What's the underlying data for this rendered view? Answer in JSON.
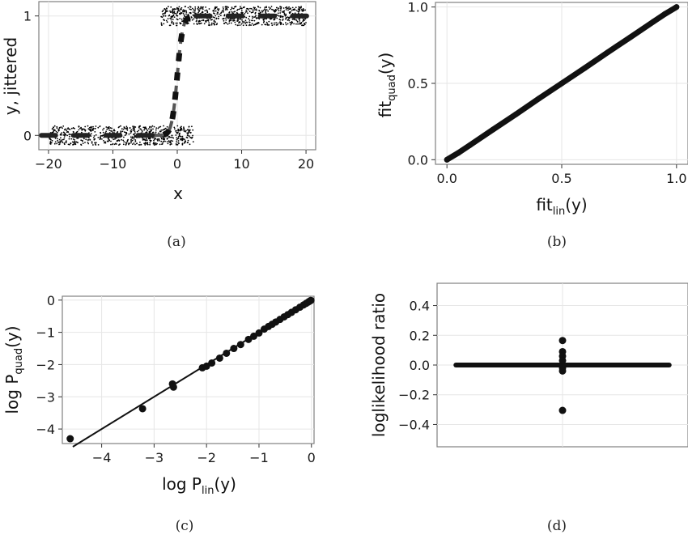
{
  "figure": {
    "captions": [
      "(a)",
      "(b)",
      "(c)",
      "(d)"
    ]
  },
  "chart_data": [
    {
      "type": "scatter",
      "id": "a",
      "xlabel": "x",
      "ylabel": "y, jittered",
      "xlim": [
        -21.5,
        21.5
      ],
      "ylim": [
        -0.12,
        1.12
      ],
      "xticks": [
        -20,
        -10,
        0,
        10,
        20
      ],
      "yticks": [
        0,
        1
      ],
      "xticklabels": [
        "−20",
        "−10",
        "0",
        "10",
        "20"
      ],
      "yticklabels": [
        "0",
        "1"
      ],
      "grid": true,
      "points_description": "jittered binary outcomes: y=0 for x from -20 to ~2, y=1 for x from ~-2 to 20, vertical jitter about ±0.08",
      "point_groups": [
        {
          "y": 0,
          "x_range": [
            -20,
            2.5
          ],
          "count": 700,
          "jitter": 0.08
        },
        {
          "y": 1,
          "x_range": [
            -2.5,
            20
          ],
          "count": 700,
          "jitter": 0.08
        }
      ],
      "fit_curve": {
        "type": "logistic",
        "slope": 2.4,
        "center": 0
      },
      "color": "#000000",
      "curve_color": "#555555"
    },
    {
      "type": "scatter",
      "id": "b",
      "xlabel": {
        "main": "fit",
        "sub": "lin",
        "tail": "(y)"
      },
      "ylabel": {
        "main": "fit",
        "sub": "quad",
        "tail": "(y)"
      },
      "xlim": [
        -0.05,
        1.05
      ],
      "ylim": [
        -0.03,
        1.03
      ],
      "xticks": [
        0.0,
        0.5,
        1.0
      ],
      "yticks": [
        0.0,
        0.5,
        1.0
      ],
      "xticklabels": [
        "0.0",
        "0.5",
        "1.0"
      ],
      "yticklabels": [
        "0.0",
        "0.5",
        "1.0"
      ],
      "grid": true,
      "series": [
        {
          "x": [
            0.0,
            0.05,
            0.1,
            0.2,
            0.3,
            0.4,
            0.5,
            0.6,
            0.7,
            0.8,
            0.9,
            0.95,
            1.0
          ],
          "y": [
            0.0,
            0.045,
            0.095,
            0.197,
            0.297,
            0.4,
            0.5,
            0.6,
            0.703,
            0.803,
            0.905,
            0.955,
            1.0
          ]
        }
      ]
    },
    {
      "type": "scatter",
      "id": "c",
      "xlabel": {
        "main": "log P",
        "sub": "lin",
        "tail": "(y)"
      },
      "ylabel": {
        "main": "log P",
        "sub": "quad",
        "tail": "(y)"
      },
      "xlim": [
        -4.75,
        0.05
      ],
      "ylim": [
        -4.45,
        0.12
      ],
      "xticks": [
        -4,
        -3,
        -2,
        -1,
        0
      ],
      "yticks": [
        0,
        -1,
        -2,
        -3,
        -4
      ],
      "xticklabels": [
        "−4",
        "−3",
        "−2",
        "−1",
        "0"
      ],
      "yticklabels": [
        "0",
        "−1",
        "−2",
        "−3",
        "−4"
      ],
      "grid": true,
      "reference_line": {
        "slope": 1,
        "intercept": 0
      },
      "series": [
        {
          "x": [
            -4.6,
            -3.22,
            -2.65,
            -2.63,
            -2.08,
            -2.0,
            -1.9,
            -1.75,
            -1.62,
            -1.48,
            -1.35,
            -1.2,
            -1.1,
            -1.0,
            -0.9,
            -0.82,
            -0.75,
            -0.68,
            -0.6,
            -0.52,
            -0.45,
            -0.38,
            -0.3,
            -0.22,
            -0.15,
            -0.1,
            -0.06,
            -0.03,
            -0.01
          ],
          "y": [
            -4.3,
            -3.37,
            -2.6,
            -2.7,
            -2.1,
            -2.05,
            -1.95,
            -1.8,
            -1.65,
            -1.5,
            -1.38,
            -1.22,
            -1.12,
            -1.02,
            -0.9,
            -0.82,
            -0.75,
            -0.68,
            -0.6,
            -0.52,
            -0.45,
            -0.38,
            -0.3,
            -0.22,
            -0.15,
            -0.1,
            -0.06,
            -0.03,
            -0.01
          ]
        }
      ]
    },
    {
      "type": "scatter",
      "id": "d",
      "ylabel": "loglikelihood ratio",
      "xlabel": "",
      "ylim": [
        -0.55,
        0.55
      ],
      "yticks": [
        0.4,
        0.2,
        0.0,
        -0.2,
        -0.4
      ],
      "yticklabels": [
        "0.4",
        "0.2",
        "0.0",
        "−0.2",
        "−0.4"
      ],
      "grid": true,
      "band": {
        "y": 0,
        "x_range": [
          -0.85,
          0.85
        ]
      },
      "series": [
        {
          "x": [
            0,
            0,
            0,
            0,
            0,
            0,
            0
          ],
          "y": [
            0.165,
            0.09,
            0.06,
            0.03,
            -0.02,
            -0.04,
            -0.305
          ]
        }
      ]
    }
  ]
}
